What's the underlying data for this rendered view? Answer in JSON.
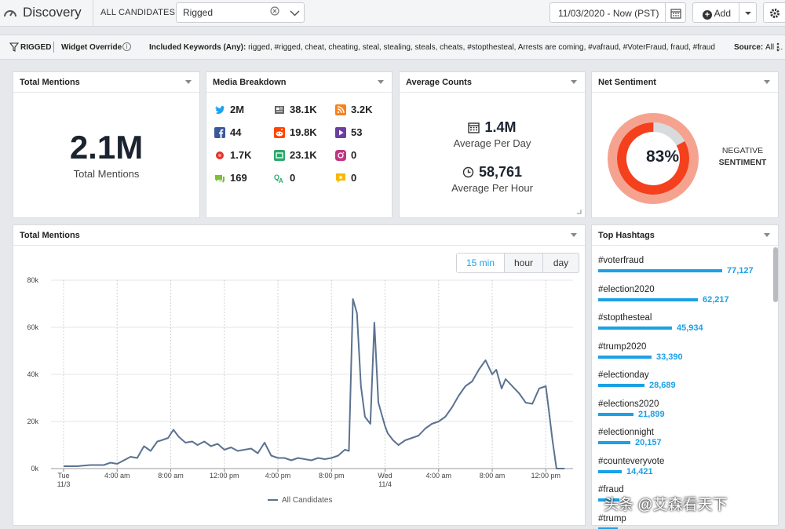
{
  "topbar": {
    "title": "Discovery",
    "candidates_label": "ALL CANDIDATES",
    "search_value": "Rigged",
    "date_range": "11/03/2020 - Now (PST)",
    "add_label": "Add"
  },
  "filterbar": {
    "tag": "RIGGED",
    "override": "Widget Override",
    "keywords_label": "Included Keywords (Any):",
    "keywords": "rigged, #rigged, cheat, cheating, steal, stealing, steals, cheats, #stopthesteal, Arrests are coming, #vafraud, #VoterFraud, fraud, #fraud",
    "source_label": "Source:",
    "source_value": "All ..."
  },
  "total_mentions": {
    "title": "Total Mentions",
    "value": "2.1M",
    "label": "Total Mentions"
  },
  "media_breakdown": {
    "title": "Media Breakdown",
    "items": [
      {
        "icon": "twitter-icon",
        "value": "2M",
        "color": "#1da1f2"
      },
      {
        "icon": "news-icon",
        "value": "38.1K",
        "color": "#555555"
      },
      {
        "icon": "rss-icon",
        "value": "3.2K",
        "color": "#f5811f"
      },
      {
        "icon": "facebook-icon",
        "value": "44",
        "color": "#3b5998"
      },
      {
        "icon": "reddit-icon",
        "value": "19.8K",
        "color": "#ff4500"
      },
      {
        "icon": "video-icon",
        "value": "53",
        "color": "#6b3fa0"
      },
      {
        "icon": "blog-icon",
        "value": "1.7K",
        "color": "#e8322c"
      },
      {
        "icon": "tv-icon",
        "value": "23.1K",
        "color": "#2aa86a"
      },
      {
        "icon": "instagram-icon",
        "value": "0",
        "color": "#c13584"
      },
      {
        "icon": "forum-icon",
        "value": "169",
        "color": "#7cbf3a"
      },
      {
        "icon": "qa-icon",
        "value": "0",
        "color": "#2aa86a"
      },
      {
        "icon": "review-icon",
        "value": "0",
        "color": "#f5b800"
      }
    ]
  },
  "average_counts": {
    "title": "Average Counts",
    "per_day_value": "1.4M",
    "per_day_label": "Average Per Day",
    "per_hour_value": "58,761",
    "per_hour_label": "Average Per Hour"
  },
  "net_sentiment": {
    "title": "Net Sentiment",
    "percent": 83,
    "percent_label": "83%",
    "label_line1": "NEGATIVE",
    "label_line2": "SENTIMENT",
    "color": "#f4401d"
  },
  "mentions_chart": {
    "title": "Total Mentions",
    "intervals": [
      "15 min",
      "hour",
      "day"
    ],
    "selected_interval": "15 min"
  },
  "chart_data": {
    "type": "line",
    "title": "Total Mentions",
    "xlabel": "",
    "ylabel": "",
    "ylim": [
      0,
      80000
    ],
    "yticks": [
      0,
      20000,
      40000,
      60000,
      80000
    ],
    "ytick_labels": [
      "0k",
      "20k",
      "40k",
      "60k",
      "80k"
    ],
    "xtick_labels": [
      "Tue\n11/3",
      "4:00 am",
      "8:00 am",
      "12:00 pm",
      "4:00 pm",
      "8:00 pm",
      "Wed\n11/4",
      "4:00 am",
      "8:00 am",
      "12:00 pm"
    ],
    "xtick_hours": [
      0,
      4,
      8,
      12,
      16,
      20,
      24,
      28,
      32,
      36
    ],
    "grid": true,
    "legend_position": "bottom",
    "series": [
      {
        "name": "All Candidates",
        "color": "#5b7290",
        "x": [
          0,
          1,
          2,
          3,
          3.5,
          4,
          4.5,
          5,
          5.5,
          6,
          6.5,
          7,
          7.3,
          7.8,
          8.2,
          8.6,
          9.1,
          9.6,
          10,
          10.5,
          11,
          11.5,
          12,
          12.5,
          13,
          13.5,
          14,
          14.5,
          15,
          15.5,
          16,
          16.5,
          17,
          17.5,
          18,
          18.5,
          19,
          19.5,
          20,
          20.5,
          21,
          21.3,
          21.6,
          21.9,
          22.2,
          22.5,
          22.9,
          23.2,
          23.5,
          23.8,
          24,
          24.2,
          24.6,
          25,
          25.5,
          26,
          26.5,
          27,
          27.5,
          28,
          28.5,
          29,
          29.5,
          30,
          30.5,
          31,
          31.5,
          32,
          32.3,
          32.7,
          33,
          33.5,
          34,
          34.5,
          35,
          35.5,
          36,
          36.2,
          36.5,
          36.8,
          37.1,
          37.4
        ],
        "values": [
          1000,
          1000,
          1500,
          1500,
          2500,
          2000,
          3500,
          5000,
          4500,
          9500,
          7500,
          11500,
          12000,
          13000,
          16500,
          13500,
          11000,
          11500,
          10000,
          11500,
          9500,
          10500,
          8000,
          9000,
          7500,
          8000,
          8500,
          6500,
          11000,
          5500,
          4500,
          4500,
          3500,
          4500,
          4000,
          3500,
          4500,
          4000,
          4500,
          5500,
          8000,
          7500,
          72000,
          66000,
          35000,
          22000,
          19000,
          62000,
          28000,
          22000,
          18000,
          15000,
          12000,
          10000,
          12000,
          13000,
          14000,
          17000,
          19000,
          20000,
          22000,
          26000,
          31000,
          35000,
          37000,
          42000,
          46000,
          40000,
          42000,
          34000,
          38000,
          35000,
          32000,
          28000,
          27500,
          34000,
          35000,
          26000,
          12000,
          0,
          0,
          0
        ]
      }
    ]
  },
  "hashtags": {
    "title": "Top Hashtags",
    "items": [
      {
        "tag": "#voterfraud",
        "count": 77127,
        "label": "77,127"
      },
      {
        "tag": "#election2020",
        "count": 62217,
        "label": "62,217"
      },
      {
        "tag": "#stopthesteal",
        "count": 45934,
        "label": "45,934"
      },
      {
        "tag": "#trump2020",
        "count": 33390,
        "label": "33,390"
      },
      {
        "tag": "#electionday",
        "count": 28689,
        "label": "28,689"
      },
      {
        "tag": "#elections2020",
        "count": 21899,
        "label": "21,899"
      },
      {
        "tag": "#electionnight",
        "count": 20157,
        "label": "20,157"
      },
      {
        "tag": "#counteveryvote",
        "count": 14421,
        "label": "14,421"
      },
      {
        "tag": "#fraud",
        "count": 13000,
        "label": ""
      },
      {
        "tag": "#trump",
        "count": 12000,
        "label": ""
      }
    ]
  },
  "watermark": "头条 @艾森看天下"
}
